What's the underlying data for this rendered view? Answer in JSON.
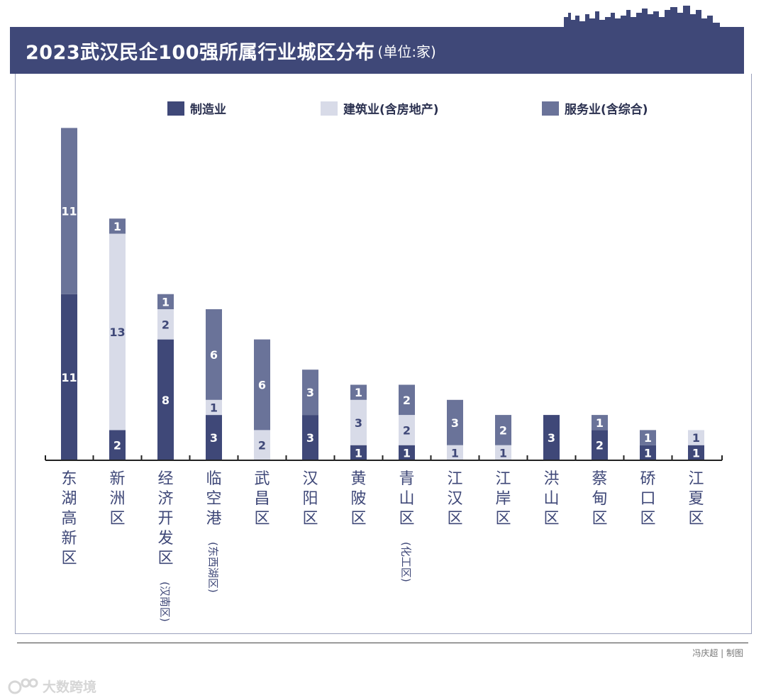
{
  "header": {
    "title": "2023武汉民企100强所属行业城区分布",
    "unit": "(单位:家)"
  },
  "legend": [
    {
      "label": "制造业",
      "color": "#3f4878"
    },
    {
      "label": "建筑业(含房地产)",
      "color": "#d8dbe8"
    },
    {
      "label": "服务业(含综合)",
      "color": "#6a7399"
    }
  ],
  "footer": {
    "credit": "冯庆超 | 制图",
    "watermark": "大数跨境"
  },
  "chart_data": {
    "type": "bar",
    "stacked": true,
    "title": "2023武汉民企100强所属行业城区分布",
    "unit": "单位:家",
    "categories": [
      {
        "main": "东湖高新区",
        "sub": ""
      },
      {
        "main": "新洲区",
        "sub": ""
      },
      {
        "main": "经济开发区",
        "sub": "(汉南区)"
      },
      {
        "main": "临空港",
        "sub": "(东西湖区)"
      },
      {
        "main": "武昌区",
        "sub": ""
      },
      {
        "main": "汉阳区",
        "sub": ""
      },
      {
        "main": "黄陂区",
        "sub": ""
      },
      {
        "main": "青山区",
        "sub": "(化工区)"
      },
      {
        "main": "江汉区",
        "sub": ""
      },
      {
        "main": "江岸区",
        "sub": ""
      },
      {
        "main": "洪山区",
        "sub": ""
      },
      {
        "main": "蔡甸区",
        "sub": ""
      },
      {
        "main": "硚口区",
        "sub": ""
      },
      {
        "main": "江夏区",
        "sub": ""
      }
    ],
    "series": [
      {
        "name": "制造业",
        "color": "#3f4878",
        "label_color": "#ffffff",
        "values": [
          11,
          2,
          8,
          3,
          0,
          3,
          1,
          1,
          0,
          0,
          3,
          2,
          1,
          1
        ]
      },
      {
        "name": "建筑业(含房地产)",
        "color": "#d8dbe8",
        "label_color": "#3f4878",
        "values": [
          0,
          13,
          2,
          1,
          2,
          0,
          3,
          2,
          1,
          1,
          0,
          0,
          0,
          1
        ]
      },
      {
        "name": "服务业(含综合)",
        "color": "#6a7399",
        "label_color": "#ffffff",
        "values": [
          11,
          1,
          1,
          6,
          6,
          3,
          1,
          2,
          3,
          2,
          0,
          1,
          1,
          0
        ]
      }
    ],
    "ylim": [
      0,
      22
    ]
  }
}
